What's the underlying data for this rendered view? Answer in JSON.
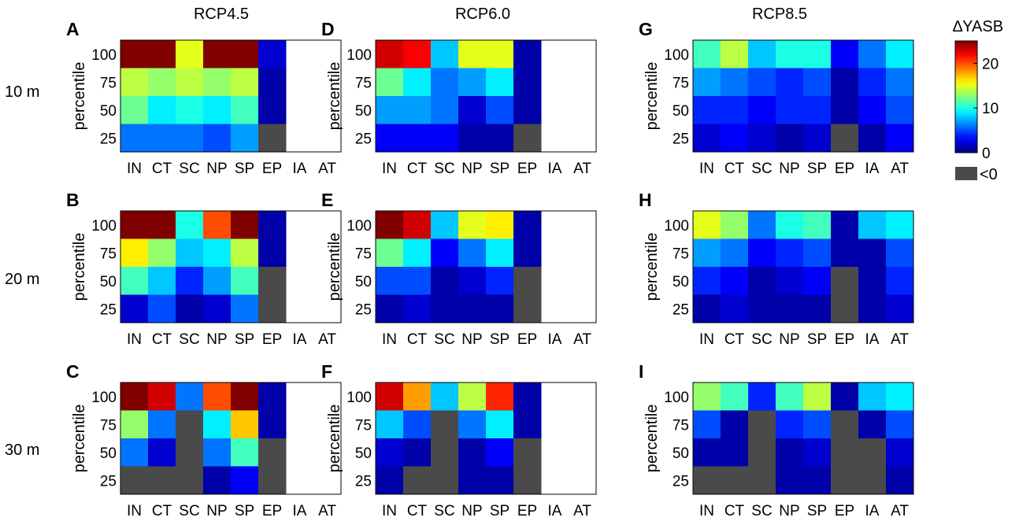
{
  "column_titles": [
    "RCP4.5",
    "RCP6.0",
    "RCP8.5"
  ],
  "row_labels": [
    "10 m",
    "20 m",
    "30 m"
  ],
  "colorbar": {
    "title": "∆YASB",
    "ticks": [
      "0",
      "10",
      "20"
    ],
    "range": [
      0,
      25
    ],
    "negative_label": "<0",
    "negative_color": "#4a4a4a"
  },
  "chart_data": [
    {
      "panel": "A",
      "type": "heatmap",
      "ylabel": "percentile",
      "categories": [
        "IN",
        "CT",
        "SC",
        "NP",
        "SP",
        "EP",
        "IA",
        "AT"
      ],
      "y": [
        "100",
        "75",
        "50",
        "25"
      ],
      "values": [
        [
          25,
          25,
          15,
          25,
          25,
          2,
          null,
          null
        ],
        [
          14,
          13,
          14,
          13,
          14,
          1,
          null,
          null
        ],
        [
          12,
          9,
          10,
          9,
          11,
          1,
          null,
          null
        ],
        [
          6,
          6,
          6,
          5,
          7,
          -1,
          null,
          null
        ]
      ]
    },
    {
      "panel": "D",
      "type": "heatmap",
      "ylabel": "percentile",
      "categories": [
        "IN",
        "CT",
        "SC",
        "NP",
        "SP",
        "EP",
        "IA",
        "AT"
      ],
      "y": [
        "100",
        "75",
        "50",
        "25"
      ],
      "values": [
        [
          23,
          22,
          8,
          15,
          15,
          1,
          null,
          null
        ],
        [
          12,
          9,
          6,
          7,
          9,
          1,
          null,
          null
        ],
        [
          7,
          7,
          6,
          2,
          5,
          1,
          null,
          null
        ],
        [
          3,
          3,
          3,
          1,
          1,
          -1,
          null,
          null
        ]
      ]
    },
    {
      "panel": "G",
      "type": "heatmap",
      "ylabel": "percentile",
      "categories": [
        "IN",
        "CT",
        "SC",
        "NP",
        "SP",
        "EP",
        "IA",
        "AT"
      ],
      "y": [
        "100",
        "75",
        "50",
        "25"
      ],
      "values": [
        [
          11,
          14,
          8,
          10,
          10,
          3,
          6,
          9
        ],
        [
          7,
          6,
          5,
          4,
          5,
          1,
          4,
          6
        ],
        [
          4,
          4,
          3,
          4,
          4,
          1,
          3,
          5
        ],
        [
          2,
          3,
          2,
          1,
          2,
          -1,
          1,
          3
        ]
      ]
    },
    {
      "panel": "B",
      "type": "heatmap",
      "ylabel": "percentile",
      "categories": [
        "IN",
        "CT",
        "SC",
        "NP",
        "SP",
        "EP",
        "IA",
        "AT"
      ],
      "y": [
        "100",
        "75",
        "50",
        "25"
      ],
      "values": [
        [
          25,
          25,
          10,
          20,
          25,
          1,
          null,
          null
        ],
        [
          16,
          13,
          8,
          9,
          14,
          1,
          null,
          null
        ],
        [
          11,
          8,
          4,
          7,
          11,
          -1,
          null,
          null
        ],
        [
          2,
          5,
          1,
          2,
          6,
          -1,
          null,
          null
        ]
      ]
    },
    {
      "panel": "E",
      "type": "heatmap",
      "ylabel": "percentile",
      "categories": [
        "IN",
        "CT",
        "SC",
        "NP",
        "SP",
        "EP",
        "IA",
        "AT"
      ],
      "y": [
        "100",
        "75",
        "50",
        "25"
      ],
      "values": [
        [
          25,
          23,
          8,
          15,
          16,
          1,
          null,
          null
        ],
        [
          12,
          9,
          3,
          6,
          9,
          1,
          null,
          null
        ],
        [
          5,
          5,
          1,
          2,
          4,
          -1,
          null,
          null
        ],
        [
          1,
          2,
          1,
          1,
          1,
          -1,
          null,
          null
        ]
      ]
    },
    {
      "panel": "H",
      "type": "heatmap",
      "ylabel": "percentile",
      "categories": [
        "IN",
        "CT",
        "SC",
        "NP",
        "SP",
        "EP",
        "IA",
        "AT"
      ],
      "y": [
        "100",
        "75",
        "50",
        "25"
      ],
      "values": [
        [
          15,
          13,
          6,
          10,
          11,
          1,
          8,
          9
        ],
        [
          7,
          6,
          3,
          4,
          5,
          1,
          1,
          5
        ],
        [
          4,
          3,
          1,
          2,
          3,
          -1,
          1,
          4
        ],
        [
          1,
          2,
          1,
          1,
          1,
          -1,
          1,
          2
        ]
      ]
    },
    {
      "panel": "C",
      "type": "heatmap",
      "ylabel": "percentile",
      "categories": [
        "IN",
        "CT",
        "SC",
        "NP",
        "SP",
        "EP",
        "IA",
        "AT"
      ],
      "y": [
        "100",
        "75",
        "50",
        "25"
      ],
      "values": [
        [
          25,
          23,
          6,
          20,
          25,
          1,
          null,
          null
        ],
        [
          13,
          6,
          -1,
          9,
          17,
          1,
          null,
          null
        ],
        [
          6,
          2,
          -1,
          6,
          11,
          -1,
          null,
          null
        ],
        [
          -1,
          -1,
          -1,
          1,
          3,
          -1,
          null,
          null
        ]
      ]
    },
    {
      "panel": "F",
      "type": "heatmap",
      "ylabel": "percentile",
      "categories": [
        "IN",
        "CT",
        "SC",
        "NP",
        "SP",
        "EP",
        "IA",
        "AT"
      ],
      "y": [
        "100",
        "75",
        "50",
        "25"
      ],
      "values": [
        [
          23,
          18,
          8,
          14,
          21,
          1,
          null,
          null
        ],
        [
          8,
          5,
          -1,
          6,
          9,
          1,
          null,
          null
        ],
        [
          2,
          1,
          -1,
          1,
          3,
          -1,
          null,
          null
        ],
        [
          1,
          -1,
          -1,
          1,
          1,
          -1,
          null,
          null
        ]
      ]
    },
    {
      "panel": "I",
      "type": "heatmap",
      "ylabel": "percentile",
      "categories": [
        "IN",
        "CT",
        "SC",
        "NP",
        "SP",
        "EP",
        "IA",
        "AT"
      ],
      "y": [
        "100",
        "75",
        "50",
        "25"
      ],
      "values": [
        [
          13,
          11,
          4,
          11,
          14,
          1,
          8,
          9
        ],
        [
          5,
          1,
          -1,
          4,
          5,
          -1,
          1,
          5
        ],
        [
          1,
          1,
          -1,
          1,
          2,
          -1,
          -1,
          2
        ],
        [
          -1,
          -1,
          -1,
          1,
          1,
          -1,
          -1,
          1
        ]
      ]
    }
  ]
}
